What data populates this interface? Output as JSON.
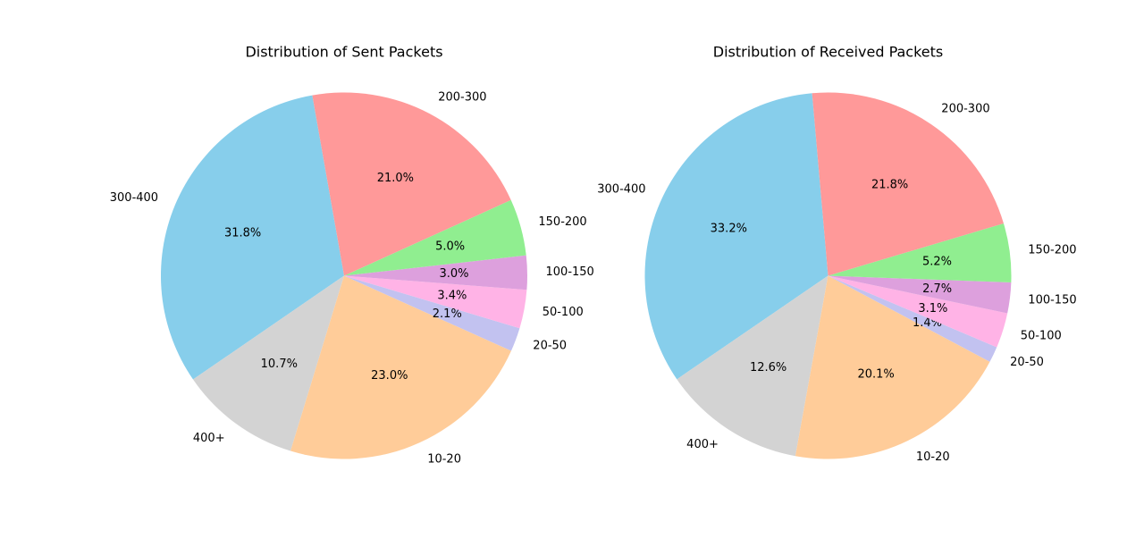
{
  "chart_data": [
    {
      "type": "pie",
      "title": "Distribution of Sent Packets",
      "start_angle_deg": 100,
      "counterclockwise": true,
      "legend": "none",
      "categories": [
        "300-400",
        "400+",
        "10-20",
        "20-50",
        "50-100",
        "100-150",
        "150-200",
        "200-300"
      ],
      "values": [
        31.8,
        10.7,
        23.0,
        2.1,
        3.4,
        3.0,
        5.0,
        21.0
      ],
      "labels": [
        "31.8%",
        "10.7%",
        "23.0%",
        "2.1%",
        "3.4%",
        "3.0%",
        "5.0%",
        "21.0%"
      ],
      "colors": [
        "#87ceeb",
        "#d3d3d3",
        "#ffcc99",
        "#c2c2f0",
        "#ffb3e6",
        "#dda0dd",
        "#90ee90",
        "#ff9999"
      ]
    },
    {
      "type": "pie",
      "title": "Distribution of Received Packets",
      "start_angle_deg": 95,
      "counterclockwise": true,
      "legend": "none",
      "categories": [
        "300-400",
        "400+",
        "10-20",
        "20-50",
        "50-100",
        "100-150",
        "150-200",
        "200-300"
      ],
      "values": [
        33.2,
        12.6,
        20.1,
        1.4,
        3.1,
        2.7,
        5.2,
        21.8
      ],
      "labels": [
        "33.2%",
        "12.6%",
        "20.1%",
        "1.4%",
        "3.1%",
        "2.7%",
        "5.2%",
        "21.8%"
      ],
      "colors": [
        "#87ceeb",
        "#d3d3d3",
        "#ffcc99",
        "#c2c2f0",
        "#ffb3e6",
        "#dda0dd",
        "#90ee90",
        "#ff9999"
      ]
    }
  ]
}
